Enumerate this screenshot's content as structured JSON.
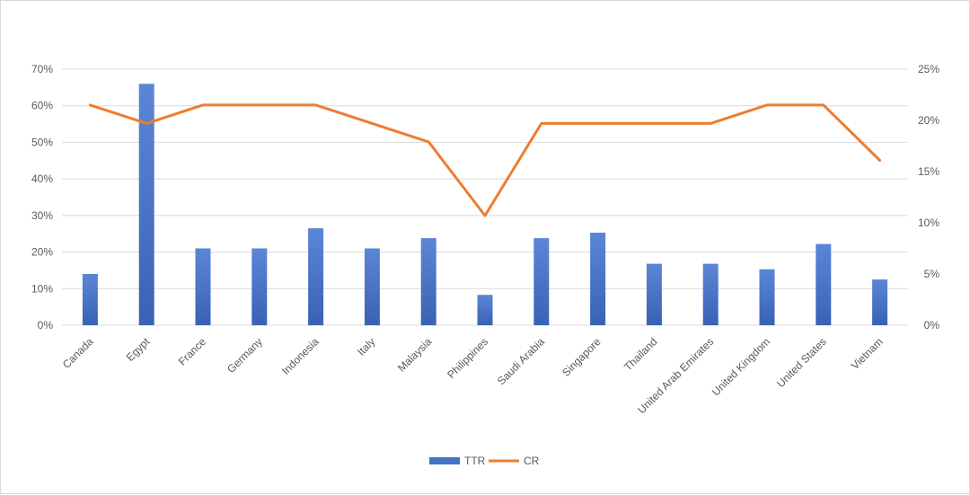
{
  "chart_data": {
    "type": "bar",
    "title": "",
    "categories": [
      "Canada",
      "Egypt",
      "France",
      "Germany",
      "Indonesia",
      "Italy",
      "Malaysia",
      "Philippines",
      "Saudi  Arabia",
      "Singapore",
      "Thailand",
      "United  Arab  Emirates",
      "United  Kingdom",
      "United  States",
      "Vietnam"
    ],
    "series": [
      {
        "name": "TTR",
        "type": "bar",
        "axis": "left",
        "color": "#4472c4",
        "values": [
          0.14,
          0.66,
          0.21,
          0.21,
          0.265,
          0.21,
          0.238,
          0.083,
          0.238,
          0.253,
          0.168,
          0.168,
          0.153,
          0.222,
          0.125
        ]
      },
      {
        "name": "CR",
        "type": "line",
        "axis": "right",
        "color": "#ed7d31",
        "values": [
          0.215,
          0.197,
          0.215,
          0.215,
          0.215,
          0.197,
          0.179,
          0.107,
          0.197,
          0.197,
          0.197,
          0.197,
          0.215,
          0.215,
          0.161
        ]
      }
    ],
    "y_left": {
      "ylim": [
        0,
        0.7
      ],
      "ticks": [
        0,
        0.1,
        0.2,
        0.3,
        0.4,
        0.5,
        0.6,
        0.7
      ],
      "tick_labels": [
        "0%",
        "10%",
        "20%",
        "30%",
        "40%",
        "50%",
        "60%",
        "70%"
      ]
    },
    "y_right": {
      "ylim": [
        0,
        0.25
      ],
      "ticks": [
        0,
        0.05,
        0.1,
        0.15,
        0.2,
        0.25
      ],
      "tick_labels": [
        "0%",
        "5%",
        "10%",
        "15%",
        "20%",
        "25%"
      ]
    },
    "xlabel": "",
    "ylabel": "",
    "grid": true,
    "legend": {
      "placement": "bottom-center",
      "entries": [
        "TTR",
        "CR"
      ]
    },
    "gridline_color": "#d9d9d9",
    "tick_color": "#595959"
  }
}
